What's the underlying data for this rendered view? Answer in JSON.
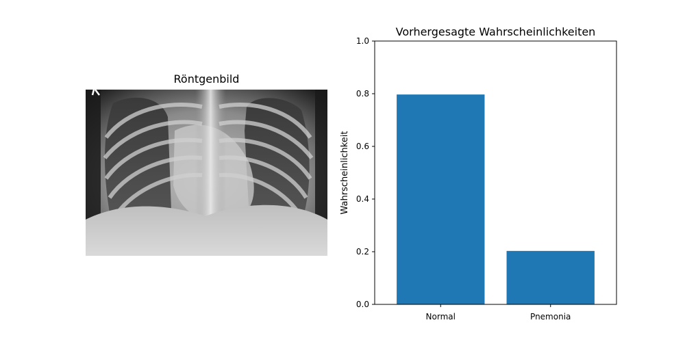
{
  "image_panel": {
    "title": "Röntgenbild"
  },
  "chart_data": {
    "type": "bar",
    "title": "Vorhergesagte Wahrscheinlichkeiten",
    "xlabel": "",
    "ylabel": "Wahrscheinlichkeit",
    "categories": [
      "Normal",
      "Pnemonia"
    ],
    "values": [
      0.797,
      0.203
    ],
    "ylim": [
      0,
      1.0
    ],
    "yticks": [
      "0.0",
      "0.2",
      "0.4",
      "0.6",
      "0.8",
      "1.0"
    ],
    "bar_color": "#1f77b4",
    "grid": false,
    "legend": "none"
  }
}
